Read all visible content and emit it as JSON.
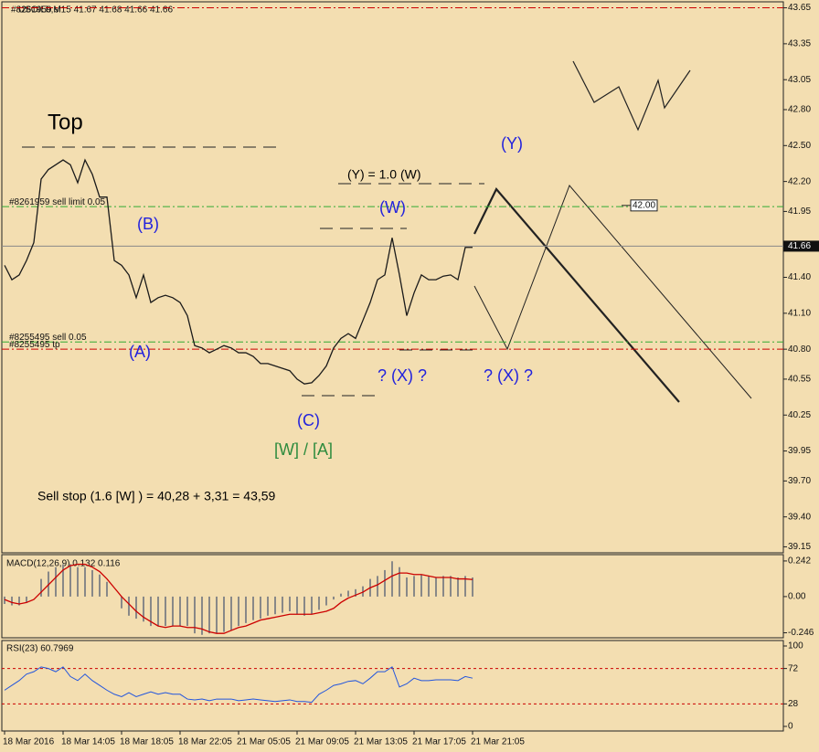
{
  "chart_data": [
    {
      "type": "line",
      "title": "USOILb,M15  41.67 41.68 41.66 41.66",
      "subtitle": "#8261959 sl",
      "color": "#1a1a1a",
      "values": [
        41.5,
        41.38,
        41.42,
        41.54,
        41.69,
        42.22,
        42.3,
        42.34,
        42.38,
        42.34,
        42.19,
        42.38,
        42.26,
        42.07,
        42.07,
        41.54,
        41.5,
        41.42,
        41.23,
        41.42,
        41.19,
        41.23,
        41.25,
        41.23,
        41.19,
        41.08,
        40.83,
        40.81,
        40.77,
        40.8,
        40.83,
        40.81,
        40.77,
        40.77,
        40.74,
        40.68,
        40.68,
        40.66,
        40.64,
        40.62,
        40.55,
        40.51,
        40.52,
        40.58,
        40.66,
        40.81,
        40.89,
        40.93,
        40.89,
        41.04,
        41.19,
        41.38,
        41.42,
        41.73,
        41.42,
        41.08,
        41.27,
        41.42,
        41.38,
        41.38,
        41.41,
        41.42,
        41.38,
        41.65,
        41.65
      ],
      "ylim": [
        39.1,
        43.7
      ],
      "yticks": [
        43.65,
        43.35,
        43.05,
        {
          "value": 42.8,
          "label": "42.80"
        },
        {
          "value": 42.5,
          "label": "42.50"
        },
        {
          "value": 42.2,
          "label": "42.20"
        },
        41.95,
        41.65,
        {
          "value": 41.4,
          "label": "41.40"
        },
        {
          "value": 41.1,
          "label": "41.10"
        },
        {
          "value": 40.8,
          "label": "40.80"
        },
        40.55,
        40.25,
        39.95,
        {
          "value": 39.7,
          "label": "39.70"
        },
        {
          "value": 39.4,
          "label": "39.40"
        },
        39.15
      ],
      "levels": [
        {
          "value": 43.65,
          "color": "#cc0000"
        },
        {
          "value": 41.99,
          "label": "#8261959 sell limit 0.05",
          "color": "#33aa33"
        },
        {
          "value": 40.86,
          "label": "#8255495 sell 0.05",
          "color": "#33aa33"
        },
        {
          "value": 40.8,
          "label": "#8255495 tp",
          "color": "#cc0000"
        }
      ],
      "price_tag": 41.66,
      "marker": {
        "value": 42.0,
        "label": "42.00"
      },
      "annotations": [
        "Top",
        "(B)",
        "(A)",
        "(C)",
        "[W] / [A]",
        "(W)",
        "? (X) ?",
        "? (X) ?",
        "(Y)",
        "(Y) = 1.0 (W)",
        "Sell stop  (1.6 [W] ) = 40,28 + 3,31 = 43,59"
      ]
    },
    {
      "type": "macd",
      "title": "MACD(12,26,9) 0.132 0.116",
      "series": [
        {
          "color": "#888888",
          "values": [
            -0.05,
            -0.06,
            -0.06,
            -0.04,
            0.0,
            0.12,
            0.17,
            0.2,
            0.22,
            0.22,
            0.2,
            0.2,
            0.18,
            0.15,
            0.1,
            0.0,
            -0.08,
            -0.13,
            -0.15,
            -0.17,
            -0.2,
            -0.2,
            -0.2,
            -0.2,
            -0.2,
            -0.2,
            -0.25,
            -0.26,
            -0.25,
            -0.25,
            -0.24,
            -0.23,
            -0.2,
            -0.18,
            -0.16,
            -0.15,
            -0.13,
            -0.12,
            -0.11,
            -0.1,
            -0.12,
            -0.13,
            -0.12,
            -0.09,
            -0.06,
            -0.02,
            0.02,
            0.04,
            0.05,
            0.07,
            0.12,
            0.14,
            0.18,
            0.24,
            0.2,
            0.13,
            0.14,
            0.15,
            0.14,
            0.13,
            0.14,
            0.14,
            0.13,
            0.14,
            0.13
          ]
        },
        {
          "color": "#cc0000",
          "values": [
            -0.02,
            -0.04,
            -0.05,
            -0.04,
            -0.02,
            0.03,
            0.08,
            0.13,
            0.18,
            0.21,
            0.22,
            0.22,
            0.2,
            0.17,
            0.12,
            0.06,
            0.0,
            -0.05,
            -0.1,
            -0.14,
            -0.17,
            -0.2,
            -0.21,
            -0.2,
            -0.2,
            -0.21,
            -0.21,
            -0.22,
            -0.24,
            -0.25,
            -0.25,
            -0.23,
            -0.21,
            -0.2,
            -0.18,
            -0.16,
            -0.15,
            -0.14,
            -0.13,
            -0.12,
            -0.12,
            -0.12,
            -0.12,
            -0.11,
            -0.1,
            -0.08,
            -0.04,
            -0.01,
            0.01,
            0.03,
            0.06,
            0.08,
            0.11,
            0.14,
            0.16,
            0.16,
            0.15,
            0.15,
            0.14,
            0.13,
            0.13,
            0.13,
            0.12,
            0.12,
            0.116
          ]
        }
      ],
      "ylim": [
        -0.28,
        0.285
      ],
      "yticks": [
        0.242,
        {
          "value": 0,
          "label": "0.00"
        },
        -0.246
      ]
    },
    {
      "type": "rsi",
      "title": "RSI(23) 60.7969",
      "color": "#2255dd",
      "values": [
        45,
        51,
        57,
        65,
        68,
        74,
        72,
        68,
        74,
        62,
        57,
        65,
        57,
        51,
        45,
        40,
        37,
        42,
        37,
        40,
        43,
        40,
        42,
        40,
        40,
        34,
        33,
        34,
        32,
        34,
        34,
        34,
        32,
        33,
        34,
        33,
        32,
        31,
        32,
        33,
        31,
        31,
        30,
        40,
        45,
        51,
        53,
        56,
        57,
        53,
        60,
        68,
        68,
        74,
        49,
        53,
        60,
        57,
        57,
        58,
        58,
        58,
        57,
        62,
        60
      ],
      "ylim": [
        -5.7,
        106.8
      ],
      "yticks": [
        100,
        72,
        28,
        0
      ],
      "levels": [
        {
          "value": 72,
          "color": "#cc0000"
        },
        {
          "value": 28,
          "color": "#cc0000"
        }
      ]
    }
  ],
  "x_labels": [
    "18 Mar 2016",
    "18 Mar 14:05",
    "18 Mar 18:05",
    "18 Mar 22:05",
    "21 Mar 05:05",
    "21 Mar 09:05",
    "21 Mar 13:05",
    "21 Mar 17:05",
    "21 Mar 21:05"
  ]
}
